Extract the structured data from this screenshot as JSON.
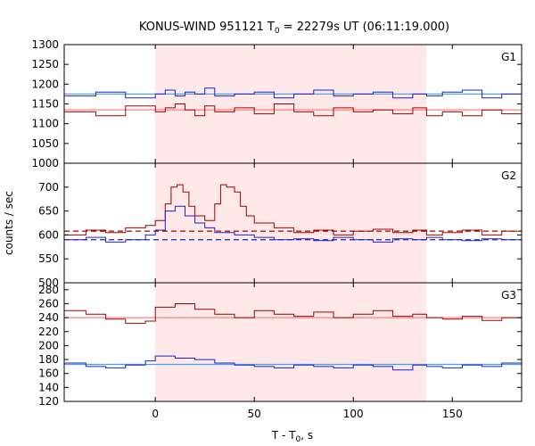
{
  "chart_data": {
    "type": "line",
    "title_main": "KONUS-WIND 951121 T",
    "title_sub": "0",
    "title_rest": " = 22279s UT (06:11:19.000)",
    "xlabel_main": "T - T",
    "xlabel_sub": "0",
    "xlabel_rest": ", s",
    "ylabel": "counts / sec",
    "xlim": [
      -46,
      185
    ],
    "x_ticks": [
      0,
      50,
      100,
      150
    ],
    "highlight_interval": [
      0,
      137
    ],
    "colors": {
      "red": "#a00000",
      "blue": "#2020c0",
      "red_fit": "#ff8080",
      "blue_fit": "#40a0ff",
      "highlight": "#ffe8e8"
    },
    "panels": [
      {
        "label": "G1",
        "ylim": [
          1000,
          1300
        ],
        "y_ticks": [
          1000,
          1050,
          1100,
          1150,
          1200,
          1250,
          1300
        ],
        "series": [
          {
            "color": "red",
            "x": [
              -46,
              -30,
              -15,
              0,
              5,
              10,
              15,
              20,
              25,
              30,
              40,
              50,
              60,
              70,
              80,
              90,
              100,
              110,
              120,
              130,
              137,
              145,
              155,
              165,
              175,
              185
            ],
            "y": [
              1130,
              1120,
              1145,
              1130,
              1140,
              1150,
              1135,
              1120,
              1145,
              1130,
              1140,
              1125,
              1150,
              1130,
              1120,
              1140,
              1130,
              1135,
              1125,
              1140,
              1120,
              1130,
              1120,
              1135,
              1125,
              1130
            ]
          },
          {
            "color": "blue",
            "x": [
              -46,
              -30,
              -15,
              0,
              5,
              10,
              15,
              20,
              25,
              30,
              40,
              50,
              60,
              70,
              80,
              90,
              100,
              110,
              120,
              130,
              137,
              145,
              155,
              165,
              175,
              185
            ],
            "y": [
              1170,
              1180,
              1165,
              1175,
              1185,
              1170,
              1180,
              1175,
              1190,
              1170,
              1175,
              1180,
              1165,
              1175,
              1185,
              1170,
              1175,
              1180,
              1165,
              1175,
              1170,
              1180,
              1185,
              1165,
              1175,
              1170
            ]
          }
        ],
        "fits": [
          {
            "color": "red_fit",
            "y": 1135,
            "dashed": false
          },
          {
            "color": "blue_fit",
            "y": 1175,
            "dashed": false
          }
        ]
      },
      {
        "label": "G2",
        "ylim": [
          500,
          750
        ],
        "y_ticks": [
          500,
          550,
          600,
          650,
          700
        ],
        "series": [
          {
            "color": "red",
            "x": [
              -46,
              -35,
              -25,
              -15,
              -5,
              0,
              5,
              8,
              11,
              14,
              17,
              20,
              25,
              30,
              33,
              36,
              40,
              43,
              46,
              50,
              60,
              70,
              80,
              90,
              100,
              110,
              120,
              130,
              137,
              145,
              155,
              165,
              175,
              185
            ],
            "y": [
              600,
              610,
              605,
              615,
              620,
              630,
              665,
              700,
              705,
              690,
              660,
              640,
              630,
              665,
              705,
              700,
              690,
              660,
              640,
              625,
              615,
              605,
              610,
              600,
              608,
              612,
              605,
              610,
              600,
              605,
              610,
              600,
              608,
              605
            ]
          },
          {
            "color": "blue",
            "x": [
              -46,
              -35,
              -25,
              -15,
              -5,
              0,
              5,
              10,
              15,
              20,
              25,
              30,
              40,
              50,
              60,
              70,
              80,
              90,
              100,
              110,
              120,
              130,
              137,
              145,
              155,
              165,
              175,
              185
            ],
            "y": [
              590,
              595,
              585,
              590,
              600,
              610,
              650,
              660,
              640,
              625,
              615,
              605,
              600,
              595,
              590,
              592,
              588,
              595,
              590,
              585,
              592,
              590,
              595,
              590,
              588,
              592,
              590,
              595
            ]
          }
        ],
        "fits": [
          {
            "color": "red",
            "y": 608,
            "dashed": true
          },
          {
            "color": "blue",
            "y": 590,
            "dashed": true
          }
        ]
      },
      {
        "label": "G3",
        "ylim": [
          120,
          290
        ],
        "y_ticks": [
          120,
          140,
          160,
          180,
          200,
          220,
          240,
          260,
          280
        ],
        "series": [
          {
            "color": "red",
            "x": [
              -46,
              -35,
              -25,
              -15,
              -5,
              0,
              10,
              20,
              30,
              40,
              50,
              60,
              70,
              80,
              90,
              100,
              110,
              120,
              130,
              137,
              145,
              155,
              165,
              175,
              185
            ],
            "y": [
              250,
              245,
              238,
              232,
              235,
              255,
              260,
              252,
              245,
              240,
              250,
              245,
              242,
              248,
              240,
              245,
              250,
              242,
              245,
              240,
              238,
              242,
              236,
              240,
              238
            ]
          },
          {
            "color": "blue",
            "x": [
              -46,
              -35,
              -25,
              -15,
              -5,
              0,
              10,
              20,
              30,
              40,
              50,
              60,
              70,
              80,
              90,
              100,
              110,
              120,
              130,
              137,
              145,
              155,
              165,
              175,
              185
            ],
            "y": [
              175,
              170,
              168,
              172,
              178,
              185,
              182,
              180,
              175,
              172,
              170,
              168,
              172,
              170,
              168,
              172,
              170,
              165,
              172,
              170,
              168,
              172,
              170,
              175,
              172
            ]
          }
        ],
        "fits": [
          {
            "color": "red_fit",
            "y": 240,
            "dashed": false
          },
          {
            "color": "blue_fit",
            "y": 173,
            "dashed": false
          }
        ]
      }
    ]
  }
}
